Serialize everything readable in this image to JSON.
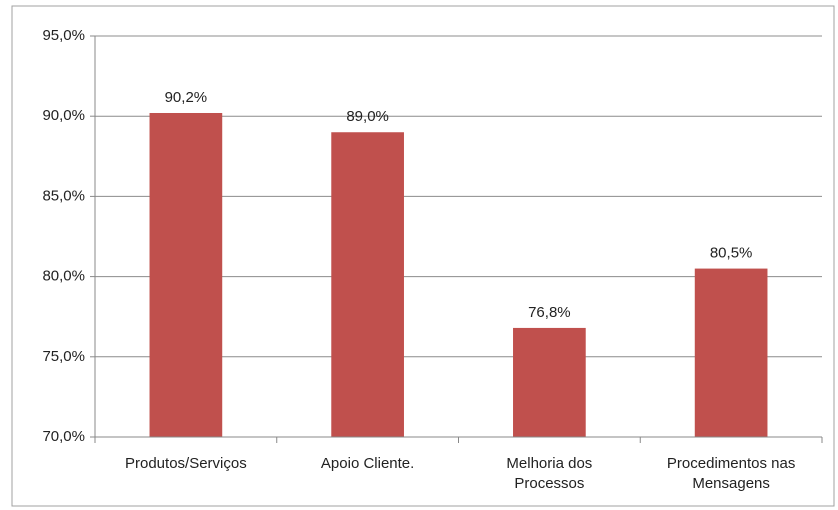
{
  "chart_data": {
    "type": "bar",
    "categories": [
      "Produtos/Serviços",
      "Apoio Cliente.",
      "Melhoria dos Processos",
      "Procedimentos nas Mensagens"
    ],
    "values": [
      90.2,
      89.0,
      76.8,
      80.5
    ],
    "value_labels": [
      "90,2%",
      "89,0%",
      "76,8%",
      "80,5%"
    ],
    "color": "#c0504d",
    "ylim": [
      70,
      95
    ],
    "yticks": [
      {
        "value": 70,
        "label": "70,0%"
      },
      {
        "value": 75,
        "label": "75,0%"
      },
      {
        "value": 80,
        "label": "80,0%"
      },
      {
        "value": 85,
        "label": "85,0%"
      },
      {
        "value": 90,
        "label": "90,0%"
      },
      {
        "value": 95,
        "label": "95,0%"
      }
    ],
    "grid": true
  }
}
